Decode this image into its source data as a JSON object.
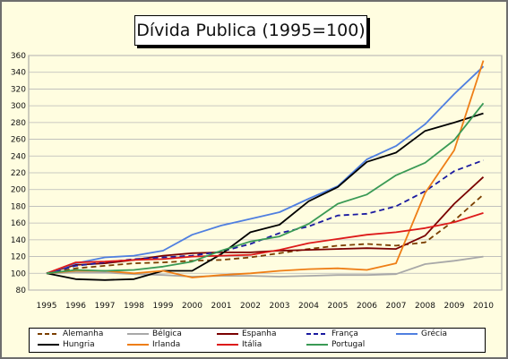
{
  "chart_data": {
    "type": "line",
    "title": "Dívida Publica (1995=100)",
    "xlabel": "",
    "ylabel": "",
    "ylim": [
      80,
      360
    ],
    "yticks": [
      80,
      100,
      120,
      140,
      160,
      180,
      200,
      220,
      240,
      260,
      280,
      300,
      320,
      340,
      360
    ],
    "x": [
      "1995",
      "1996",
      "1997",
      "1998",
      "1999",
      "2000",
      "2001",
      "2002",
      "2003",
      "2004",
      "2005",
      "2006",
      "2007",
      "2008",
      "2009",
      "2010"
    ],
    "grid": true,
    "legend_position": "bottom",
    "series": [
      {
        "name": "Alemanha",
        "color": "#7b3f00",
        "dash": "dashed",
        "values": [
          100,
          106,
          109,
          112,
          113,
          115,
          116,
          119,
          124,
          129,
          133,
          135,
          133,
          137,
          163,
          194
        ]
      },
      {
        "name": "Bélgica",
        "color": "#a8a8a8",
        "dash": "solid",
        "values": [
          100,
          101,
          101,
          99,
          98,
          96,
          97,
          97,
          96,
          97,
          98,
          98,
          99,
          111,
          115,
          120
        ]
      },
      {
        "name": "Espanha",
        "color": "#7a0000",
        "dash": "solid",
        "values": [
          100,
          110,
          112,
          116,
          121,
          124,
          125,
          125,
          127,
          128,
          129,
          130,
          129,
          145,
          183,
          215
        ]
      },
      {
        "name": "França",
        "color": "#1a1aa0",
        "dash": "dashed",
        "values": [
          100,
          109,
          113,
          117,
          119,
          121,
          126,
          135,
          148,
          156,
          169,
          171,
          180,
          198,
          222,
          235
        ]
      },
      {
        "name": "Grécia",
        "color": "#4f7fe0",
        "dash": "solid",
        "values": [
          100,
          112,
          119,
          121,
          127,
          146,
          157,
          165,
          173,
          189,
          204,
          236,
          252,
          278,
          314,
          347
        ]
      },
      {
        "name": "Hungria",
        "color": "#000000",
        "dash": "solid",
        "values": [
          100,
          93,
          92,
          93,
          103,
          103,
          123,
          149,
          158,
          186,
          203,
          233,
          244,
          270,
          280,
          291
        ]
      },
      {
        "name": "Irlanda",
        "color": "#ee7e16",
        "dash": "solid",
        "values": [
          100,
          103,
          103,
          100,
          103,
          95,
          98,
          100,
          103,
          105,
          106,
          104,
          112,
          196,
          247,
          354
        ]
      },
      {
        "name": "Itália",
        "color": "#dd1a1a",
        "dash": "solid",
        "values": [
          100,
          113,
          114,
          116,
          117,
          120,
          121,
          122,
          128,
          136,
          141,
          146,
          149,
          154,
          161,
          172
        ]
      },
      {
        "name": "Portugal",
        "color": "#3a9a55",
        "dash": "solid",
        "values": [
          100,
          104,
          103,
          104,
          108,
          114,
          127,
          138,
          144,
          159,
          183,
          194,
          217,
          232,
          259,
          303
        ]
      }
    ]
  }
}
